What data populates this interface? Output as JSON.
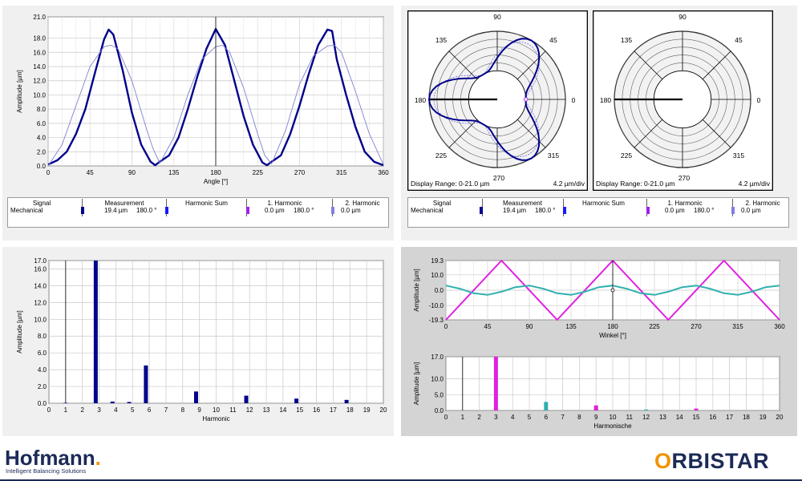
{
  "top_left": {
    "chart_data": {
      "type": "line",
      "xlabel": "Angle [°]",
      "ylabel": "Amplitude [µm]",
      "xlim": [
        0,
        360
      ],
      "ylim": [
        0,
        21
      ],
      "xticks": [
        "0",
        "45",
        "90",
        "135",
        "180",
        "225",
        "270",
        "315",
        "360"
      ],
      "yticks": [
        "0.0",
        "2.0",
        "4.0",
        "6.0",
        "8.0",
        "10.0",
        "12.0",
        "14.0",
        "16.0",
        "18.0",
        "21.0"
      ],
      "series": [
        {
          "color": "#00008b",
          "x": [
            0,
            10,
            20,
            30,
            40,
            50,
            60,
            65,
            70,
            80,
            90,
            100,
            110,
            115,
            120,
            130,
            140,
            150,
            160,
            170,
            180,
            190,
            200,
            210,
            220,
            230,
            235,
            240,
            250,
            260,
            270,
            280,
            290,
            300,
            305,
            310,
            320,
            330,
            340,
            350,
            360
          ],
          "y": [
            0.2,
            0.8,
            2.0,
            4.5,
            8.0,
            13.0,
            17.8,
            19.2,
            18.5,
            13.5,
            7.5,
            3.0,
            0.6,
            0.1,
            0.6,
            1.5,
            4.0,
            8.0,
            12.5,
            16.5,
            19.3,
            17.0,
            12.0,
            7.0,
            3.0,
            0.5,
            0.1,
            0.6,
            1.5,
            4.5,
            8.5,
            13.0,
            17.0,
            19.2,
            19.0,
            15.0,
            10.0,
            5.5,
            2.0,
            0.6,
            0.1
          ]
        },
        {
          "color": "#8080d0",
          "x": [
            0,
            15,
            30,
            45,
            60,
            67.5,
            75,
            90,
            105,
            112.5,
            120,
            135,
            150,
            165,
            180,
            187.5,
            195,
            210,
            225,
            232.5,
            240,
            255,
            270,
            285,
            300,
            307.5,
            315,
            330,
            345,
            360
          ],
          "y": [
            0.0,
            3.0,
            8.5,
            14.0,
            16.8,
            17.0,
            16.5,
            12.0,
            5.5,
            2.5,
            0.4,
            4.0,
            10.0,
            15.0,
            16.8,
            17.0,
            16.0,
            11.0,
            4.5,
            1.5,
            0.3,
            5.0,
            11.5,
            15.5,
            16.9,
            17.0,
            16.0,
            10.5,
            4.5,
            0.2
          ]
        }
      ],
      "marker_x": 180
    }
  },
  "legend": {
    "headers": {
      "signal": "Signal",
      "measurement": "Measurement",
      "harmonic_sum": "Harmonic Sum",
      "h1": "1. Harmonic",
      "h2": "2. Harmonic"
    },
    "row": {
      "signal": "Mechanical",
      "measurement_value": "19.4 µm",
      "measurement_angle": "180.0 °",
      "h1_value": "0.0 µm",
      "h1_angle": "180.0 °",
      "h2_value": "0.0 µm"
    },
    "colors": {
      "measurement": "#00008b",
      "harmonic_sum": "#1a1aff",
      "h1": "#a020f0",
      "h2": "#8080e0"
    }
  },
  "polar_left": {
    "angles": [
      "90",
      "45",
      "0",
      "315",
      "270",
      "225",
      "180",
      "135"
    ],
    "display_range": "Display Range: 0-21.0 µm",
    "scale": "4.2 µm/div"
  },
  "polar_right": {
    "angles": [
      "90",
      "45",
      "0",
      "315",
      "270",
      "225",
      "180",
      "135"
    ],
    "display_range": "Display Range: 0-21.0 µm",
    "scale": "4.2 µm/div"
  },
  "bottom_left": {
    "chart_data": {
      "type": "bar",
      "xlabel": "Harmonic",
      "ylabel": "Amplitude [µm]",
      "ylim": [
        0,
        17
      ],
      "yticks": [
        "0.0",
        "2.0",
        "4.0",
        "6.0",
        "8.0",
        "10.0",
        "12.0",
        "14.0",
        "16.0",
        "17.0"
      ],
      "categories": [
        "0",
        "1",
        "2",
        "3",
        "4",
        "5",
        "6",
        "7",
        "8",
        "9",
        "10",
        "11",
        "12",
        "13",
        "14",
        "15",
        "16",
        "17",
        "18",
        "19",
        "20"
      ],
      "values": [
        {
          "x": 1,
          "y": 0.05
        },
        {
          "x": 2.8,
          "y": 17.0
        },
        {
          "x": 3.8,
          "y": 0.2
        },
        {
          "x": 4.8,
          "y": 0.15
        },
        {
          "x": 5.8,
          "y": 4.5
        },
        {
          "x": 8.8,
          "y": 1.4
        },
        {
          "x": 11.8,
          "y": 0.9
        },
        {
          "x": 14.8,
          "y": 0.55
        },
        {
          "x": 17.8,
          "y": 0.4
        }
      ],
      "color": "#00008b"
    }
  },
  "bottom_right_wave": {
    "chart_data": {
      "type": "line",
      "xlabel": "Winkel [°]",
      "ylabel": "Amplitude [µm]",
      "xlim": [
        0,
        360
      ],
      "ylim": [
        -19.3,
        19.3
      ],
      "xticks": [
        "0",
        "45",
        "90",
        "135",
        "180",
        "225",
        "270",
        "315",
        "360"
      ],
      "yticks": [
        "19.3",
        "10.0",
        "0.0",
        "-10.0",
        "-19.3"
      ],
      "series": [
        {
          "color": "#e020e0",
          "x": [
            0,
            60,
            120,
            180,
            240,
            300,
            360
          ],
          "y": [
            -19.3,
            19.3,
            -19.3,
            19.3,
            -19.3,
            19.3,
            -19.3
          ]
        },
        {
          "color": "#30b0b0",
          "x": [
            0,
            15,
            30,
            45,
            60,
            75,
            90,
            105,
            120,
            135,
            150,
            165,
            180,
            195,
            210,
            225,
            240,
            255,
            270,
            285,
            300,
            315,
            330,
            345,
            360
          ],
          "y": [
            3,
            1,
            -2,
            -3,
            -1,
            2,
            3,
            1,
            -2,
            -3,
            -1,
            2,
            3,
            1,
            -2,
            -3,
            -1,
            2,
            3,
            1,
            -2,
            -3,
            -1,
            2,
            3
          ]
        }
      ],
      "marker_x": 180
    }
  },
  "bottom_right_bars": {
    "chart_data": {
      "type": "bar",
      "xlabel": "Harmonische",
      "ylabel": "Amplitude [µm]",
      "ylim": [
        0,
        17
      ],
      "yticks": [
        "0.0",
        "5.0",
        "10.0",
        "17.0"
      ],
      "categories": [
        "0",
        "1",
        "2",
        "3",
        "4",
        "5",
        "6",
        "7",
        "8",
        "9",
        "10",
        "11",
        "12",
        "13",
        "14",
        "15",
        "16",
        "17",
        "18",
        "19",
        "20"
      ],
      "values": [
        {
          "x": 3,
          "y": 17.0,
          "color": "#e020e0"
        },
        {
          "x": 6,
          "y": 2.7,
          "color": "#30b0b0"
        },
        {
          "x": 9,
          "y": 1.6,
          "color": "#e020e0"
        },
        {
          "x": 12,
          "y": 0.3,
          "color": "#30b0b0"
        },
        {
          "x": 15,
          "y": 0.6,
          "color": "#e020e0"
        }
      ]
    }
  },
  "branding": {
    "left_logo": "Hofmann",
    "left_logo_dot": ".",
    "left_tagline": "Intelligent Balancing Solutions",
    "right_logo_o": "O",
    "right_logo_rest": "RBISTAR"
  }
}
